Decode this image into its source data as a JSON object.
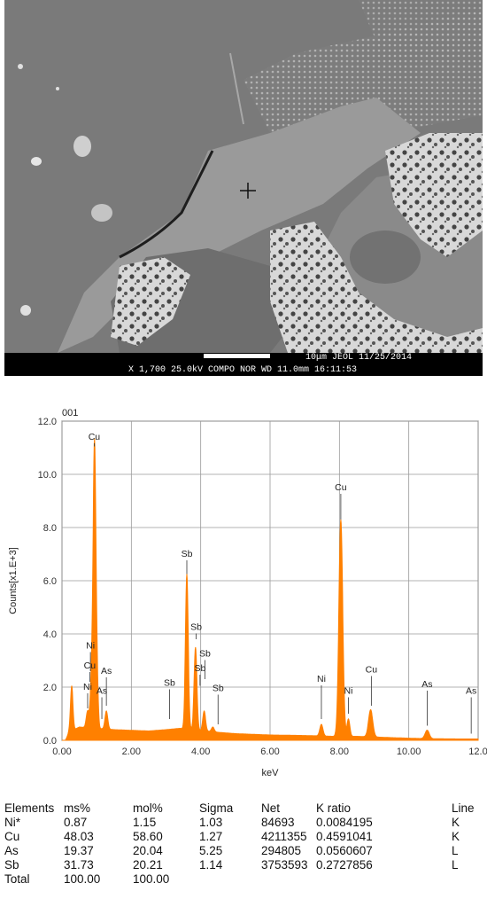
{
  "micrograph": {
    "info_line1": "10μm  JEOL    11/25/2014",
    "info_line2": "X 1,700      25.0kV COMPO    NOR     WD 11.0mm 16:11:53"
  },
  "chart_data": {
    "type": "line",
    "id_label": "001",
    "xlabel": "keV",
    "ylabel": "Counts[x1.E+3]",
    "xlim": [
      0,
      12
    ],
    "ylim": [
      0,
      12
    ],
    "grid": true,
    "color": "#ff8000",
    "x_ticks": [
      "0.00",
      "2.00",
      "4.00",
      "6.00",
      "8.00",
      "10.00",
      "12.0"
    ],
    "y_ticks": [
      "0.0",
      "2.0",
      "4.0",
      "6.0",
      "8.0",
      "10.0",
      "12.0"
    ],
    "baseline": [
      [
        0.0,
        0.0
      ],
      [
        0.1,
        0.0
      ],
      [
        0.2,
        0.3
      ],
      [
        0.5,
        0.5
      ],
      [
        1.5,
        0.4
      ],
      [
        2.5,
        0.35
      ],
      [
        3.0,
        0.4
      ],
      [
        3.4,
        0.45
      ],
      [
        4.5,
        0.3
      ],
      [
        5.0,
        0.25
      ],
      [
        6.0,
        0.2
      ],
      [
        7.0,
        0.18
      ],
      [
        7.8,
        0.15
      ],
      [
        8.5,
        0.15
      ],
      [
        9.5,
        0.1
      ],
      [
        10.5,
        0.06
      ],
      [
        11.5,
        0.05
      ],
      [
        12.0,
        0.05
      ]
    ],
    "peaks": [
      {
        "x": 0.28,
        "y": 2.05,
        "w": 0.035
      },
      {
        "x": 0.74,
        "y": 1.1,
        "w": 0.04
      },
      {
        "x": 0.86,
        "y": 2.4,
        "w": 0.04
      },
      {
        "x": 0.94,
        "y": 11.05,
        "w": 0.04
      },
      {
        "x": 1.02,
        "y": 1.7,
        "w": 0.03
      },
      {
        "x": 1.28,
        "y": 1.1,
        "w": 0.04
      },
      {
        "x": 3.6,
        "y": 6.25,
        "w": 0.04
      },
      {
        "x": 3.85,
        "y": 3.5,
        "w": 0.04
      },
      {
        "x": 4.1,
        "y": 1.1,
        "w": 0.04
      },
      {
        "x": 4.35,
        "y": 0.5,
        "w": 0.04
      },
      {
        "x": 7.48,
        "y": 0.6,
        "w": 0.045
      },
      {
        "x": 8.04,
        "y": 8.3,
        "w": 0.055
      },
      {
        "x": 8.26,
        "y": 0.8,
        "w": 0.04
      },
      {
        "x": 8.9,
        "y": 1.15,
        "w": 0.06
      },
      {
        "x": 10.53,
        "y": 0.38,
        "w": 0.06
      }
    ],
    "annotations": [
      {
        "label": "Cu",
        "x": 0.93,
        "y": 11.05,
        "label_y": 11.3
      },
      {
        "label": "Ni",
        "x": 0.82,
        "y": 2.6,
        "label_y": 3.45
      },
      {
        "label": "Cu",
        "x": 0.8,
        "y": 2.2,
        "label_y": 2.7
      },
      {
        "label": "Ni",
        "x": 0.74,
        "y": 1.2,
        "label_y": 1.9
      },
      {
        "label": "As",
        "x": 1.28,
        "y": 1.3,
        "label_y": 2.5
      },
      {
        "label": "As",
        "x": 1.15,
        "y": 0.8,
        "label_y": 1.75
      },
      {
        "label": "Sb",
        "x": 3.6,
        "y": 6.25,
        "label_y": 6.9
      },
      {
        "label": "Sb",
        "x": 3.1,
        "y": 0.8,
        "label_y": 2.05
      },
      {
        "label": "Sb",
        "x": 3.87,
        "y": 3.8,
        "label_y": 4.15
      },
      {
        "label": "Sb",
        "x": 4.12,
        "y": 2.3,
        "label_y": 3.15
      },
      {
        "label": "Sb",
        "x": 3.98,
        "y": 2.05,
        "label_y": 2.6
      },
      {
        "label": "Sb",
        "x": 4.5,
        "y": 0.6,
        "label_y": 1.85
      },
      {
        "label": "Ni",
        "x": 7.48,
        "y": 0.8,
        "label_y": 2.2
      },
      {
        "label": "Cu",
        "x": 8.04,
        "y": 8.3,
        "label_y": 9.4
      },
      {
        "label": "Ni",
        "x": 8.26,
        "y": 1.0,
        "label_y": 1.75
      },
      {
        "label": "Cu",
        "x": 8.92,
        "y": 1.3,
        "label_y": 2.55
      },
      {
        "label": "As",
        "x": 10.53,
        "y": 0.55,
        "label_y": 2.0
      },
      {
        "label": "As",
        "x": 11.8,
        "y": 0.25,
        "label_y": 1.75
      }
    ]
  },
  "table": {
    "headers": [
      "Elements",
      "ms%",
      "mol%",
      "Sigma",
      "Net",
      "K ratio",
      "Line"
    ],
    "rows": [
      [
        "Ni*",
        "0.87",
        "1.15",
        "1.03",
        "84693",
        "0.0084195",
        "K"
      ],
      [
        "Cu",
        "48.03",
        "58.60",
        "1.27",
        "4211355",
        "0.4591041",
        "K"
      ],
      [
        "As",
        "19.37",
        "20.04",
        "5.25",
        "294805",
        "0.0560607",
        "L"
      ],
      [
        "Sb",
        "31.73",
        "20.21",
        "1.14",
        "3753593",
        "0.2727856",
        "L"
      ],
      [
        "Total",
        "100.00",
        "100.00",
        "",
        "",
        "",
        ""
      ]
    ]
  }
}
